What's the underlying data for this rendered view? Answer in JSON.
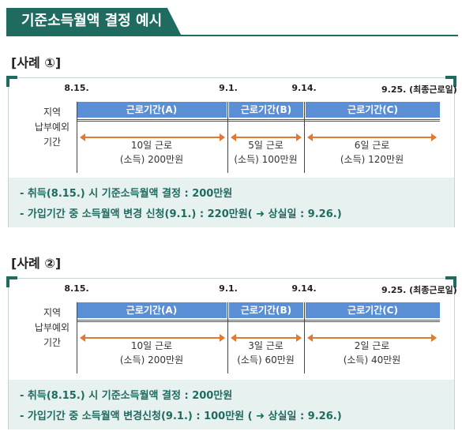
{
  "header": {
    "title": "기준소득월액 결정 예시"
  },
  "cases": [
    {
      "label": "[사례 ①]",
      "dates": [
        "8.15.",
        "9.1.",
        "9.14.",
        "9.25. (최종근로일)"
      ],
      "row_labels": [
        "지역",
        "납부예외",
        "기간"
      ],
      "periods": [
        {
          "header": "근로기간(A)",
          "line1": "10일 근로",
          "line2": "(소득) 200만원"
        },
        {
          "header": "근로기간(B)",
          "line1": "5일 근로",
          "line2": "(소득) 100만원"
        },
        {
          "header": "근로기간(C)",
          "line1": "6일 근로",
          "line2": "(소득) 120만원"
        }
      ],
      "notes": [
        "- 취득(8.15.) 시 기준소득월액 결정 : 200만원",
        "- 가입기간 중 소득월액 변경 신청(9.1.) : 220만원( ➜ 상실일 : 9.26.)"
      ]
    },
    {
      "label": "[사례 ②]",
      "dates": [
        "8.15.",
        "9.1.",
        "9.14.",
        "9.25. (최종근로일)"
      ],
      "row_labels": [
        "지역",
        "납부예외",
        "기간"
      ],
      "periods": [
        {
          "header": "근로기간(A)",
          "line1": "10일 근로",
          "line2": "(소득) 200만원"
        },
        {
          "header": "근로기간(B)",
          "line1": "3일 근로",
          "line2": "(소득) 60만원"
        },
        {
          "header": "근로기간(C)",
          "line1": "2일 근로",
          "line2": "(소득) 40만원"
        }
      ],
      "notes": [
        "- 취득(8.15.) 시 기준소득월액 결정 : 200만원",
        "- 가입기간 중 소득월액 변경신청(9.1.) : 100만원 ( ➜ 상실일 : 9.26.)"
      ]
    }
  ]
}
